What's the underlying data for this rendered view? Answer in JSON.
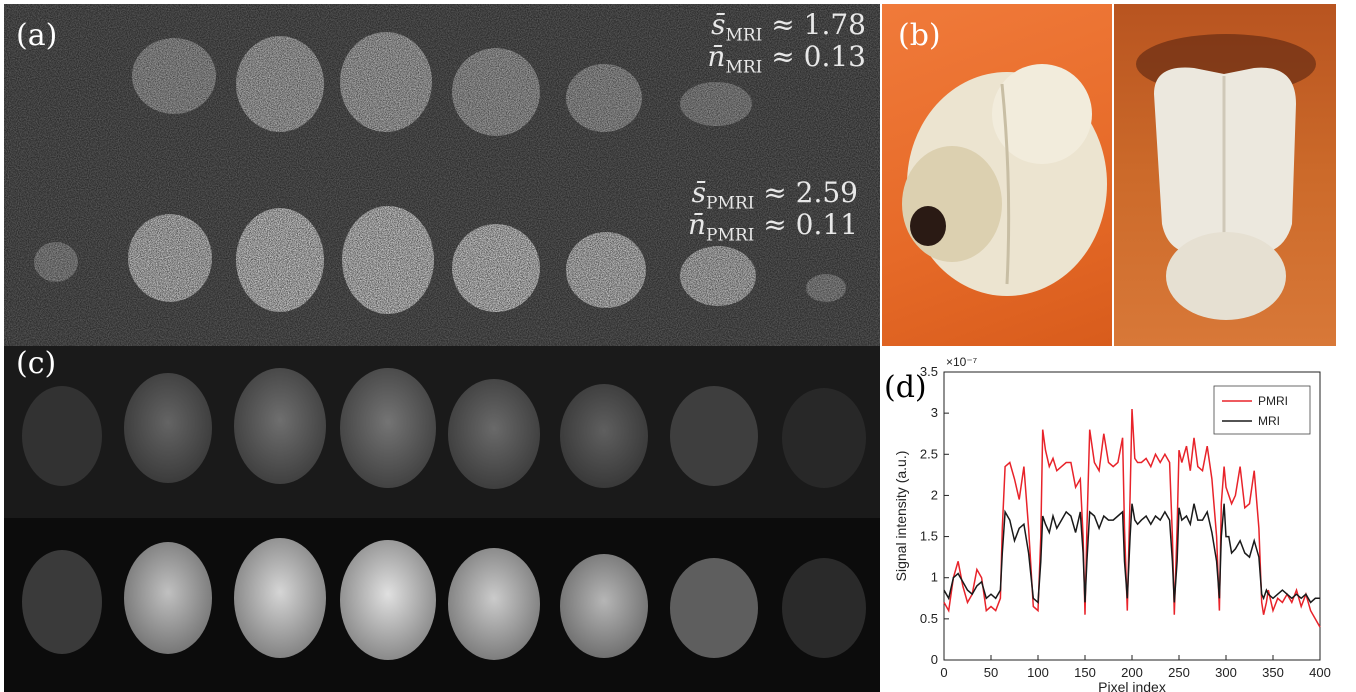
{
  "panel_a": {
    "label": "(a)",
    "mri_stats": {
      "s_sym": "s̄",
      "s_sub": "MRI",
      "s_val": "≈ 1.78",
      "n_sym": "n̄",
      "n_sub": "MRI",
      "n_val": "≈ 0.13"
    },
    "pmri_stats": {
      "s_sym": "s̄",
      "s_sub": "PMRI",
      "s_val": "≈ 2.59",
      "n_sym": "n̄",
      "n_sub": "PMRI",
      "n_val": "≈ 0.11"
    }
  },
  "panel_b": {
    "label": "(b)"
  },
  "panel_c": {
    "label": "(c)"
  },
  "panel_d": {
    "label": "(d)"
  },
  "chart_data": {
    "type": "line",
    "xlabel": "Pixel index",
    "ylabel": "Signal intensity (a.u.)",
    "y_exponent": "×10⁻⁷",
    "xlim": [
      0,
      400
    ],
    "ylim": [
      0,
      3.5
    ],
    "xticks": [
      0,
      50,
      100,
      150,
      200,
      250,
      300,
      350,
      400
    ],
    "yticks": [
      0,
      0.5,
      1,
      1.5,
      2,
      2.5,
      3,
      3.5
    ],
    "legend_position": "top-right",
    "series": [
      {
        "name": "PMRI",
        "color": "#e8232a",
        "x": [
          0,
          5,
          10,
          15,
          20,
          25,
          30,
          35,
          40,
          45,
          50,
          55,
          60,
          62,
          65,
          70,
          75,
          80,
          85,
          90,
          95,
          100,
          103,
          105,
          108,
          112,
          116,
          120,
          125,
          130,
          135,
          140,
          145,
          148,
          150,
          152,
          155,
          160,
          165,
          170,
          175,
          180,
          185,
          190,
          192,
          195,
          198,
          200,
          203,
          206,
          210,
          215,
          220,
          225,
          230,
          235,
          240,
          243,
          245,
          248,
          250,
          253,
          258,
          262,
          266,
          270,
          275,
          280,
          285,
          290,
          293,
          295,
          298,
          300,
          303,
          306,
          310,
          315,
          320,
          325,
          330,
          335,
          338,
          340,
          343,
          345,
          350,
          355,
          360,
          365,
          370,
          375,
          380,
          385,
          390,
          395,
          400
        ],
        "y": [
          0.7,
          0.6,
          1.0,
          1.2,
          0.9,
          0.7,
          0.8,
          1.1,
          1.0,
          0.6,
          0.65,
          0.6,
          0.75,
          1.6,
          2.35,
          2.4,
          2.2,
          1.95,
          2.35,
          1.6,
          0.65,
          0.6,
          1.5,
          2.8,
          2.55,
          2.35,
          2.45,
          2.3,
          2.35,
          2.4,
          2.4,
          2.1,
          2.2,
          1.5,
          0.55,
          1.6,
          2.8,
          2.4,
          2.3,
          2.75,
          2.4,
          2.35,
          2.4,
          2.7,
          1.6,
          0.6,
          2.0,
          3.05,
          2.45,
          2.4,
          2.4,
          2.45,
          2.35,
          2.5,
          2.4,
          2.5,
          2.4,
          1.5,
          0.55,
          1.6,
          2.55,
          2.4,
          2.6,
          2.3,
          2.7,
          2.35,
          2.3,
          2.6,
          2.2,
          1.5,
          0.6,
          1.9,
          2.35,
          2.1,
          2.0,
          1.9,
          2.0,
          2.35,
          1.85,
          1.9,
          2.3,
          1.6,
          0.7,
          0.55,
          0.7,
          0.85,
          0.6,
          0.75,
          0.7,
          0.8,
          0.7,
          0.85,
          0.65,
          0.8,
          0.6,
          0.5,
          0.4
        ]
      },
      {
        "name": "MRI",
        "color": "#1a1a1a",
        "x": [
          0,
          5,
          10,
          15,
          20,
          25,
          30,
          35,
          40,
          45,
          50,
          55,
          60,
          62,
          65,
          70,
          75,
          80,
          85,
          90,
          95,
          100,
          103,
          105,
          108,
          112,
          116,
          120,
          125,
          130,
          135,
          140,
          145,
          148,
          150,
          152,
          155,
          160,
          165,
          170,
          175,
          180,
          185,
          190,
          192,
          195,
          198,
          200,
          203,
          206,
          210,
          215,
          220,
          225,
          230,
          235,
          240,
          243,
          245,
          248,
          250,
          253,
          258,
          262,
          266,
          270,
          275,
          280,
          285,
          290,
          293,
          295,
          298,
          300,
          303,
          306,
          310,
          315,
          320,
          325,
          330,
          335,
          338,
          340,
          343,
          345,
          350,
          355,
          360,
          365,
          370,
          375,
          380,
          385,
          390,
          395,
          400
        ],
        "y": [
          0.85,
          0.75,
          1.0,
          1.05,
          0.95,
          0.85,
          0.8,
          0.9,
          0.95,
          0.75,
          0.8,
          0.75,
          0.85,
          1.3,
          1.8,
          1.7,
          1.45,
          1.6,
          1.65,
          1.3,
          0.75,
          0.7,
          1.2,
          1.75,
          1.65,
          1.55,
          1.75,
          1.6,
          1.7,
          1.8,
          1.75,
          1.55,
          1.8,
          1.3,
          0.7,
          1.2,
          1.8,
          1.75,
          1.6,
          1.75,
          1.7,
          1.7,
          1.75,
          1.8,
          1.2,
          0.75,
          1.5,
          1.9,
          1.7,
          1.65,
          1.7,
          1.75,
          1.65,
          1.75,
          1.7,
          1.8,
          1.7,
          1.2,
          0.7,
          1.2,
          1.85,
          1.7,
          1.75,
          1.65,
          1.9,
          1.7,
          1.7,
          1.8,
          1.55,
          1.2,
          0.75,
          1.5,
          1.9,
          1.5,
          1.5,
          1.3,
          1.35,
          1.45,
          1.3,
          1.25,
          1.45,
          1.25,
          0.8,
          0.75,
          0.85,
          0.8,
          0.75,
          0.8,
          0.85,
          0.8,
          0.75,
          0.8,
          0.75,
          0.8,
          0.7,
          0.75,
          0.75
        ]
      }
    ]
  }
}
